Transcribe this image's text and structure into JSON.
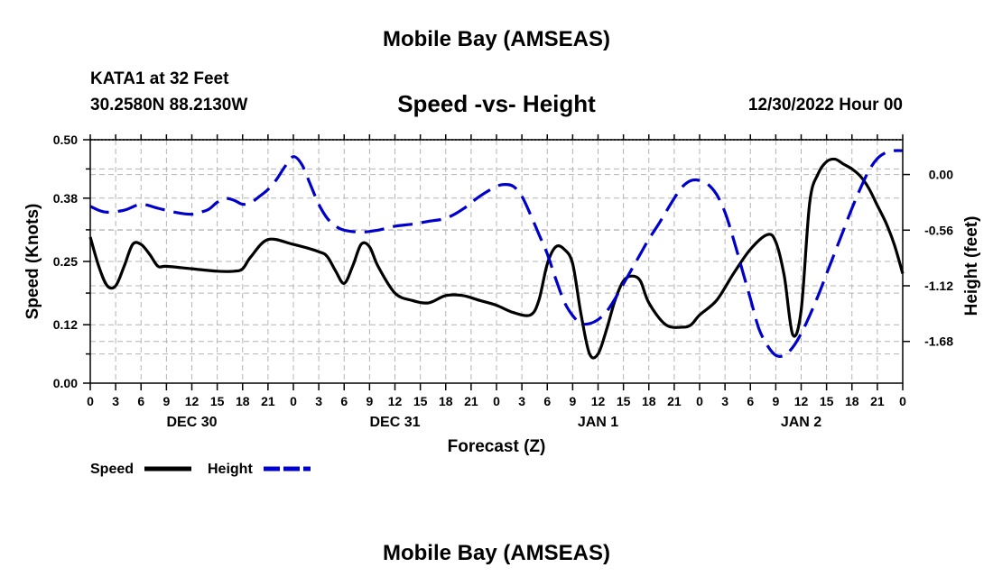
{
  "header": {
    "title": "Mobile Bay (AMSEAS)",
    "station": "KATA1 at 32 Feet",
    "coords": "30.2580N  88.2130W",
    "chart_title": "Speed -vs- Height",
    "issued": "12/30/2022 Hour 00"
  },
  "footer": {
    "title": "Mobile Bay (AMSEAS)"
  },
  "chart_data": {
    "type": "line",
    "title": "Speed -vs- Height",
    "xlabel": "Forecast (Z)",
    "ylabel": "Speed (Knots)",
    "y2label": "Height (feet)",
    "x_unit": "forecast hour",
    "xlim": [
      0,
      96
    ],
    "ylim": [
      0,
      0.5
    ],
    "y2lim": [
      -2.1,
      0.35
    ],
    "grid": true,
    "x_tick_hours": [
      0,
      3,
      6,
      9,
      12,
      15,
      18,
      21,
      24,
      27,
      30,
      33,
      36,
      39,
      42,
      45,
      48,
      51,
      54,
      57,
      60,
      63,
      66,
      69,
      72,
      75,
      78,
      81,
      84,
      87,
      90,
      93,
      96
    ],
    "x_tick_labels": [
      "0",
      "3",
      "6",
      "9",
      "12",
      "15",
      "18",
      "21",
      "0",
      "3",
      "6",
      "9",
      "12",
      "15",
      "18",
      "21",
      "0",
      "3",
      "6",
      "9",
      "12",
      "15",
      "18",
      "21",
      "0",
      "3",
      "6",
      "9",
      "12",
      "15",
      "18",
      "21",
      "0"
    ],
    "date_labels": [
      {
        "hour": 12,
        "label": "DEC 30"
      },
      {
        "hour": 36,
        "label": "DEC 31"
      },
      {
        "hour": 60,
        "label": "JAN 1"
      },
      {
        "hour": 84,
        "label": "JAN 2"
      }
    ],
    "y_ticks": [
      0.0,
      0.12,
      0.25,
      0.38,
      0.5
    ],
    "y_tick_labels": [
      "0.00",
      "0.12",
      "0.25",
      "0.38",
      "0.50"
    ],
    "y2_ticks": [
      0.0,
      -0.56,
      -1.12,
      -1.68
    ],
    "y2_tick_labels": [
      "0.00",
      "-0.56",
      "-1.12",
      "-1.68"
    ],
    "legend": [
      {
        "name": "Speed",
        "color": "#000000",
        "style": "solid"
      },
      {
        "name": "Height",
        "color": "#0000cc",
        "style": "dashed"
      }
    ],
    "legend_position": "bottom-left",
    "series": [
      {
        "name": "Speed",
        "axis": "left",
        "color": "#000000",
        "x": [
          0,
          1,
          2,
          3,
          4,
          5,
          6,
          7,
          8,
          9,
          12,
          15,
          17,
          18,
          19,
          21,
          24,
          27,
          28,
          29,
          30,
          31,
          32,
          33,
          34,
          36,
          38,
          40,
          42,
          44,
          46,
          48,
          50,
          52,
          53,
          54,
          55,
          56,
          57,
          58,
          59,
          60,
          61,
          62,
          63,
          64,
          65,
          66,
          68,
          70,
          71,
          72,
          74,
          76,
          78,
          80,
          81,
          82,
          83,
          84,
          85,
          86,
          87,
          88,
          89,
          90,
          91,
          92,
          93,
          94,
          95,
          96
        ],
        "y": [
          0.3,
          0.24,
          0.2,
          0.2,
          0.24,
          0.285,
          0.285,
          0.265,
          0.24,
          0.24,
          0.235,
          0.23,
          0.23,
          0.235,
          0.26,
          0.295,
          0.285,
          0.27,
          0.26,
          0.23,
          0.205,
          0.24,
          0.285,
          0.28,
          0.24,
          0.185,
          0.17,
          0.165,
          0.18,
          0.18,
          0.17,
          0.16,
          0.145,
          0.14,
          0.17,
          0.245,
          0.28,
          0.275,
          0.245,
          0.14,
          0.06,
          0.06,
          0.11,
          0.17,
          0.21,
          0.22,
          0.21,
          0.165,
          0.12,
          0.115,
          0.12,
          0.14,
          0.17,
          0.225,
          0.275,
          0.305,
          0.29,
          0.22,
          0.1,
          0.15,
          0.37,
          0.43,
          0.455,
          0.46,
          0.45,
          0.44,
          0.425,
          0.4,
          0.365,
          0.33,
          0.285,
          0.225
        ]
      },
      {
        "name": "Height",
        "axis": "right",
        "color": "#0000cc",
        "x": [
          0,
          1,
          2,
          4,
          6,
          8,
          10,
          12,
          13,
          14,
          15,
          16,
          17,
          18,
          19,
          20,
          21,
          22,
          23,
          24,
          25,
          26,
          27,
          28,
          29,
          30,
          32,
          34,
          36,
          38,
          40,
          42,
          44,
          46,
          48,
          49,
          50,
          51,
          52,
          53,
          54,
          55,
          56,
          57,
          58,
          59,
          60,
          61,
          62,
          63,
          64,
          65,
          66,
          67,
          68,
          69,
          70,
          71,
          72,
          73,
          74,
          75,
          76,
          77,
          78,
          79,
          80,
          81,
          82,
          83,
          84,
          85,
          86,
          87,
          88,
          89,
          90,
          91,
          92,
          93,
          94,
          95,
          96
        ],
        "y": [
          -0.32,
          -0.36,
          -0.38,
          -0.36,
          -0.3,
          -0.34,
          -0.38,
          -0.4,
          -0.38,
          -0.35,
          -0.28,
          -0.24,
          -0.26,
          -0.3,
          -0.28,
          -0.22,
          -0.15,
          -0.05,
          0.08,
          0.18,
          0.1,
          -0.1,
          -0.3,
          -0.44,
          -0.52,
          -0.56,
          -0.58,
          -0.56,
          -0.52,
          -0.5,
          -0.47,
          -0.44,
          -0.35,
          -0.22,
          -0.12,
          -0.1,
          -0.12,
          -0.22,
          -0.4,
          -0.6,
          -0.8,
          -1.05,
          -1.28,
          -1.42,
          -1.5,
          -1.5,
          -1.46,
          -1.38,
          -1.25,
          -1.1,
          -0.95,
          -0.8,
          -0.65,
          -0.52,
          -0.38,
          -0.24,
          -0.12,
          -0.06,
          -0.06,
          -0.1,
          -0.2,
          -0.38,
          -0.65,
          -0.95,
          -1.25,
          -1.55,
          -1.72,
          -1.82,
          -1.82,
          -1.74,
          -1.6,
          -1.42,
          -1.22,
          -1.0,
          -0.78,
          -0.56,
          -0.34,
          -0.14,
          0.04,
          0.16,
          0.22,
          0.24,
          0.24
        ]
      }
    ]
  }
}
